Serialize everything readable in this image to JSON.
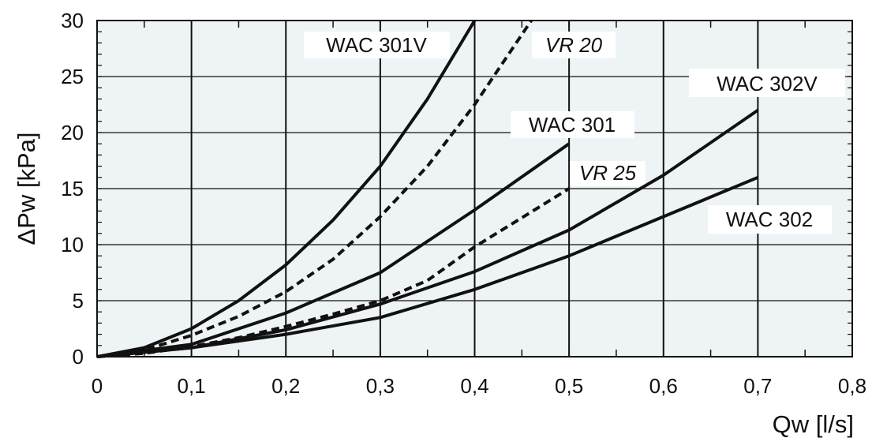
{
  "chart_data": {
    "type": "line",
    "title": "",
    "xlabel": "Qw [l/s]",
    "ylabel": "ΔPw [kPa]",
    "xlim": [
      0,
      0.8
    ],
    "ylim": [
      0,
      30
    ],
    "x_ticks": [
      "0",
      "0,1",
      "0,2",
      "0,3",
      "0,4",
      "0,5",
      "0,6",
      "0,7",
      "0,8"
    ],
    "y_ticks": [
      "0",
      "5",
      "10",
      "15",
      "20",
      "25",
      "30"
    ],
    "grid": true,
    "colors": {
      "background": "#eef3f6",
      "grid": "#111111",
      "line": "#111111"
    },
    "series": [
      {
        "name": "WAC 301V",
        "style": "solid",
        "x": [
          0,
          0.05,
          0.1,
          0.15,
          0.2,
          0.25,
          0.3,
          0.35,
          0.4
        ],
        "y": [
          0,
          0.8,
          2.5,
          5,
          8.2,
          12.2,
          17,
          23,
          30
        ]
      },
      {
        "name": "VR 20",
        "style": "dashed",
        "x": [
          0,
          0.05,
          0.1,
          0.15,
          0.2,
          0.25,
          0.3,
          0.35,
          0.4,
          0.46
        ],
        "y": [
          0,
          0.6,
          1.9,
          3.6,
          5.8,
          8.7,
          12.5,
          17,
          22.5,
          30
        ]
      },
      {
        "name": "WAC 301",
        "style": "solid",
        "x": [
          0,
          0.1,
          0.2,
          0.3,
          0.4,
          0.5
        ],
        "y": [
          0,
          1.1,
          3.9,
          7.5,
          13.1,
          19
        ]
      },
      {
        "name": "VR 25",
        "style": "dashed",
        "x": [
          0,
          0.05,
          0.1,
          0.15,
          0.2,
          0.25,
          0.3,
          0.35,
          0.4,
          0.45,
          0.5
        ],
        "y": [
          0,
          0.3,
          0.9,
          1.7,
          2.7,
          3.8,
          5,
          6.8,
          9.8,
          12.4,
          15
        ]
      },
      {
        "name": "WAC 302V",
        "style": "solid",
        "x": [
          0,
          0.1,
          0.2,
          0.3,
          0.4,
          0.5,
          0.6,
          0.7
        ],
        "y": [
          0,
          0.8,
          2.4,
          4.7,
          7.6,
          11.3,
          16.2,
          22
        ]
      },
      {
        "name": "WAC 302",
        "style": "solid",
        "x": [
          0,
          0.1,
          0.2,
          0.3,
          0.4,
          0.5,
          0.6,
          0.7
        ],
        "y": [
          0,
          0.8,
          2,
          3.5,
          6,
          9,
          12.5,
          16
        ]
      }
    ]
  }
}
